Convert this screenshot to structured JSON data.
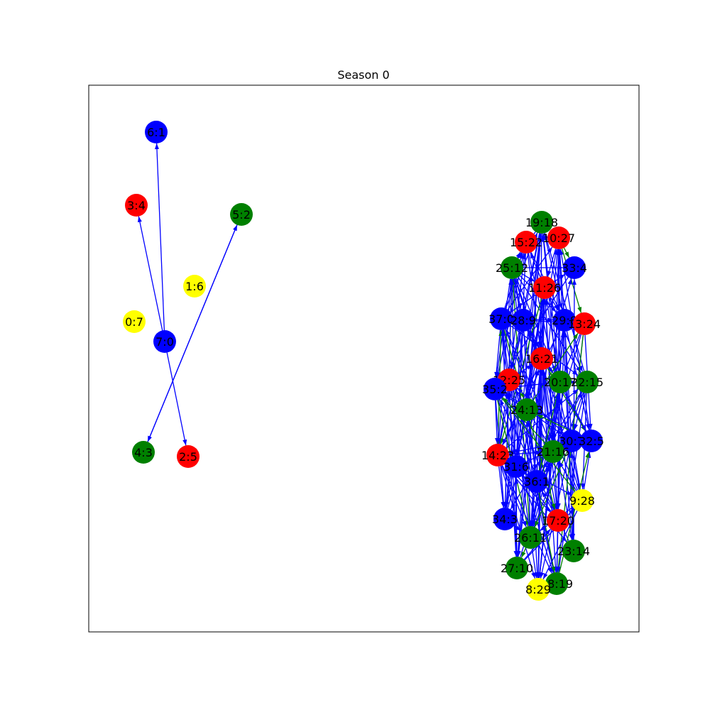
{
  "figure": {
    "title": "Season 0"
  },
  "chart_data": {
    "type": "network",
    "title": "Season 0",
    "colors": {
      "blue": "#0000ff",
      "red": "#ff0000",
      "green": "#008000",
      "yellow": "#ffff00"
    },
    "nodes": [
      {
        "id": "6:1",
        "color": "blue"
      },
      {
        "id": "3:4",
        "color": "red"
      },
      {
        "id": "5:2",
        "color": "green"
      },
      {
        "id": "1:6",
        "color": "yellow"
      },
      {
        "id": "0:7",
        "color": "yellow"
      },
      {
        "id": "7:0",
        "color": "blue"
      },
      {
        "id": "4:3",
        "color": "green"
      },
      {
        "id": "2:5",
        "color": "red"
      },
      {
        "id": "19:18",
        "color": "green"
      },
      {
        "id": "15:22",
        "color": "red"
      },
      {
        "id": "10:27",
        "color": "red"
      },
      {
        "id": "25:12",
        "color": "green"
      },
      {
        "id": "33:4",
        "color": "blue"
      },
      {
        "id": "11:26",
        "color": "red"
      },
      {
        "id": "37:0",
        "color": "blue"
      },
      {
        "id": "28:9",
        "color": "blue"
      },
      {
        "id": "29:8",
        "color": "blue"
      },
      {
        "id": "13:24",
        "color": "red"
      },
      {
        "id": "16:21",
        "color": "red"
      },
      {
        "id": "12:25",
        "color": "red"
      },
      {
        "id": "20:17",
        "color": "green"
      },
      {
        "id": "22:15",
        "color": "green"
      },
      {
        "id": "35:2",
        "color": "blue"
      },
      {
        "id": "24:13",
        "color": "green"
      },
      {
        "id": "30:7",
        "color": "blue"
      },
      {
        "id": "32:5",
        "color": "blue"
      },
      {
        "id": "14:23",
        "color": "red"
      },
      {
        "id": "21:16",
        "color": "green"
      },
      {
        "id": "31:6",
        "color": "blue"
      },
      {
        "id": "36:1",
        "color": "blue"
      },
      {
        "id": "9:28",
        "color": "yellow"
      },
      {
        "id": "34:3",
        "color": "blue"
      },
      {
        "id": "17:20",
        "color": "red"
      },
      {
        "id": "26:11",
        "color": "green"
      },
      {
        "id": "23:14",
        "color": "green"
      },
      {
        "id": "27:10",
        "color": "green"
      },
      {
        "id": "18:19",
        "color": "green"
      },
      {
        "id": "8:29",
        "color": "yellow"
      }
    ],
    "edges": [
      {
        "source": "7:0",
        "target": "6:1",
        "color": "blue"
      },
      {
        "source": "7:0",
        "target": "3:4",
        "color": "blue"
      },
      {
        "source": "7:0",
        "target": "2:5",
        "color": "blue"
      },
      {
        "source": "5:2",
        "target": "4:3",
        "color": "blue"
      },
      {
        "source": "4:3",
        "target": "5:2",
        "color": "blue"
      }
    ]
  }
}
